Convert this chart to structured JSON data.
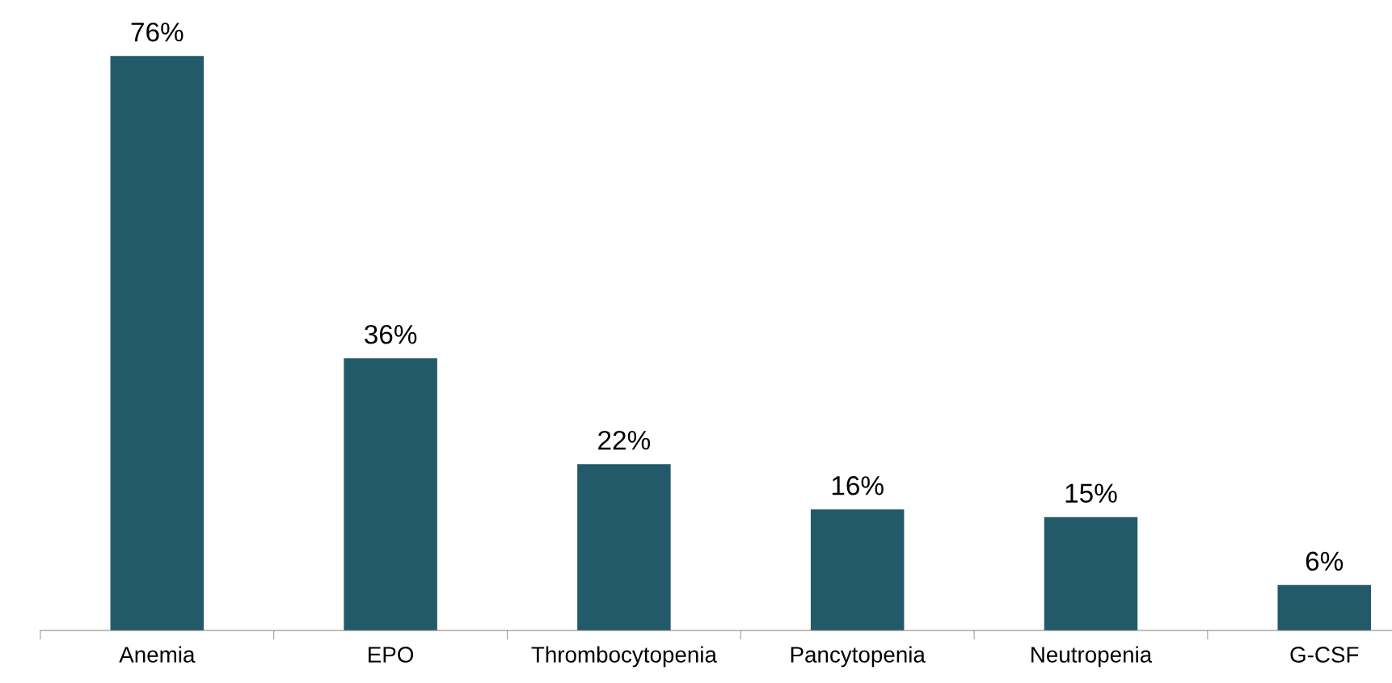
{
  "chart_data": {
    "type": "bar",
    "categories": [
      "Anemia",
      "EPO",
      "Thrombocytopenia",
      "Pancytopenia",
      "Neutropenia",
      "G-CSF"
    ],
    "values": [
      76,
      36,
      22,
      16,
      15,
      6
    ],
    "value_labels": [
      "76%",
      "36%",
      "22%",
      "16%",
      "15%",
      "6%"
    ],
    "color": "#235a69",
    "grid": false,
    "legend": false,
    "tick_labels": "x"
  }
}
